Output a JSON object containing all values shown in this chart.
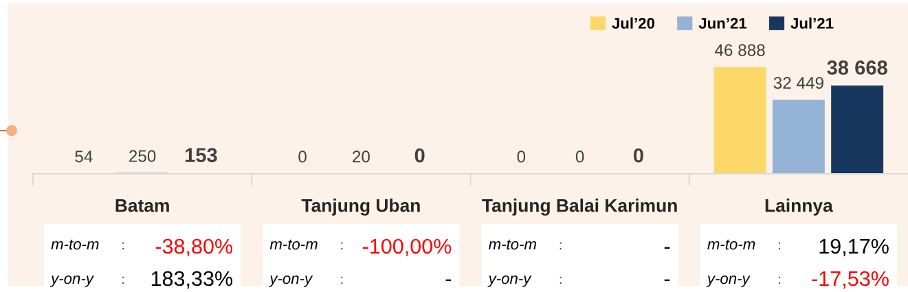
{
  "chart_data": {
    "type": "bar",
    "categories": [
      "Batam",
      "Tanjung Uban",
      "Tanjung Balai Karimun",
      "Lainnya"
    ],
    "series": [
      {
        "name": "Jul’20",
        "color": "#fdd868",
        "values": [
          54,
          0,
          0,
          46888
        ],
        "value_labels": [
          "54",
          "0",
          "0",
          "46 888"
        ]
      },
      {
        "name": "Jun’21",
        "color": "#95b3d7",
        "values": [
          250,
          20,
          0,
          32449
        ],
        "value_labels": [
          "250",
          "20",
          "0",
          "32 449"
        ]
      },
      {
        "name": "Jul’21",
        "color": "#17375e",
        "values": [
          153,
          0,
          0,
          38668
        ],
        "value_labels": [
          "153",
          "0",
          "0",
          "38 668"
        ]
      }
    ],
    "ylim": [
      0,
      75000
    ],
    "legend": "top right",
    "tick_labels": "x",
    "grid": false,
    "annotations": [
      "m-to-m",
      ":",
      "-38,80%",
      "y-on-y",
      ":",
      "183,33%",
      "m-to-m",
      ":",
      "-100,00%",
      "y-on-y",
      ":",
      "-",
      "m-to-m",
      ":",
      "-",
      "y-on-y",
      ":",
      "-",
      "m-to-m",
      ":",
      "19,17%",
      "y-on-y",
      ":",
      "-17,53%"
    ]
  }
}
